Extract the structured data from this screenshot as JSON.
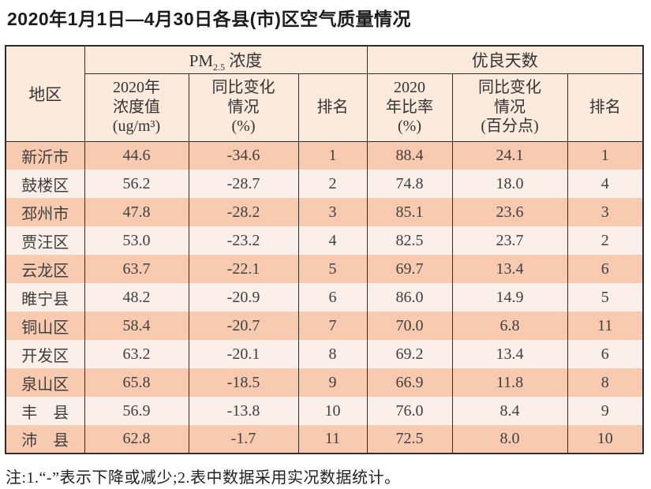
{
  "page": {
    "title": "2020年1月1日—4月30日各县(市)区空气质量情况",
    "note": "注:1.“-”表示下降或减少;2.表中数据采用实况数据统计。"
  },
  "colors": {
    "row_odd": "#f8cbb0",
    "row_even": "#fbf0e9",
    "header_bg": "#fceadd",
    "border": "#2e2e2e",
    "text": "#3b3b3b"
  },
  "table": {
    "header": {
      "region": "地区",
      "pm25": {
        "prefix": "PM",
        "sub": "2.5",
        "suffix": " 浓度"
      },
      "good_days_label": "优良天数",
      "sub_columns": [
        "2020年\n浓度值\n(ug/m³)",
        "同比变化\n情况\n(%)",
        "排名",
        "2020\n年比率\n(%)",
        "同比变化\n情况\n(百分点)",
        "排名"
      ]
    },
    "column_keys": [
      "region",
      "pm25_value",
      "pm25_change",
      "pm25_rank",
      "good_rate",
      "good_change",
      "good_rank"
    ],
    "rows": [
      {
        "region": "新沂市",
        "pm25_value": "44.6",
        "pm25_change": "-34.6",
        "pm25_rank": "1",
        "good_rate": "88.4",
        "good_change": "24.1",
        "good_rank": "1"
      },
      {
        "region": "鼓楼区",
        "pm25_value": "56.2",
        "pm25_change": "-28.7",
        "pm25_rank": "2",
        "good_rate": "74.8",
        "good_change": "18.0",
        "good_rank": "4"
      },
      {
        "region": "邳州市",
        "pm25_value": "47.8",
        "pm25_change": "-28.2",
        "pm25_rank": "3",
        "good_rate": "85.1",
        "good_change": "23.6",
        "good_rank": "3"
      },
      {
        "region": "贾汪区",
        "pm25_value": "53.0",
        "pm25_change": "-23.2",
        "pm25_rank": "4",
        "good_rate": "82.5",
        "good_change": "23.7",
        "good_rank": "2"
      },
      {
        "region": "云龙区",
        "pm25_value": "63.7",
        "pm25_change": "-22.1",
        "pm25_rank": "5",
        "good_rate": "69.7",
        "good_change": "13.4",
        "good_rank": "6"
      },
      {
        "region": "睢宁县",
        "pm25_value": "48.2",
        "pm25_change": "-20.9",
        "pm25_rank": "6",
        "good_rate": "86.0",
        "good_change": "14.9",
        "good_rank": "5"
      },
      {
        "region": "铜山区",
        "pm25_value": "58.4",
        "pm25_change": "-20.7",
        "pm25_rank": "7",
        "good_rate": "70.0",
        "good_change": "6.8",
        "good_rank": "11"
      },
      {
        "region": "开发区",
        "pm25_value": "63.2",
        "pm25_change": "-20.1",
        "pm25_rank": "8",
        "good_rate": "69.2",
        "good_change": "13.4",
        "good_rank": "6"
      },
      {
        "region": "泉山区",
        "pm25_value": "65.8",
        "pm25_change": "-18.5",
        "pm25_rank": "9",
        "good_rate": "66.9",
        "good_change": "11.8",
        "good_rank": "8"
      },
      {
        "region": "丰　县",
        "pm25_value": "56.9",
        "pm25_change": "-13.8",
        "pm25_rank": "10",
        "good_rate": "76.0",
        "good_change": "8.4",
        "good_rank": "9"
      },
      {
        "region": "沛　县",
        "pm25_value": "62.8",
        "pm25_change": "-1.7",
        "pm25_rank": "11",
        "good_rate": "72.5",
        "good_change": "8.0",
        "good_rank": "10"
      }
    ]
  }
}
